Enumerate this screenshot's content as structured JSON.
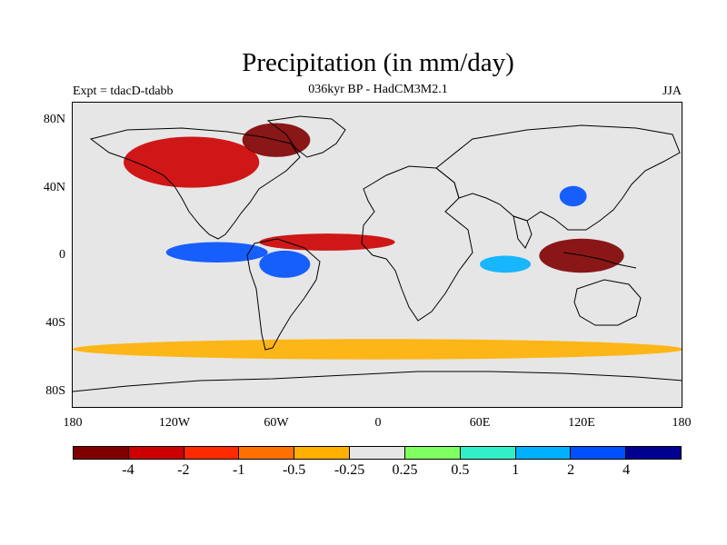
{
  "title": "Precipitation (in mm/day)",
  "subtitle": "036kyr BP - HadCM3M2.1",
  "left_label": "Expt = tdacD-tdabb",
  "right_label": "JJA",
  "chart_data": {
    "type": "heatmap",
    "title": "Precipitation (in mm/day)",
    "xlabel": "",
    "ylabel": "",
    "x_ticks": [
      "180",
      "120W",
      "60W",
      "0",
      "60E",
      "120E",
      "180"
    ],
    "y_ticks": [
      "80N",
      "40N",
      "0",
      "40S",
      "80S"
    ],
    "lon_range": [
      -180,
      180
    ],
    "lat_range": [
      -90,
      90
    ],
    "colorbar": {
      "labels": [
        "-4",
        "-2",
        "-1",
        "-0.5",
        "-0.25",
        "0.25",
        "0.5",
        "1",
        "2",
        "4"
      ],
      "colors": [
        "#7f0000",
        "#cc0000",
        "#ff2a00",
        "#ff7000",
        "#ffb000",
        "#e6e6e6",
        "#80ff60",
        "#30f0c8",
        "#00b0ff",
        "#0050ff",
        "#000090"
      ]
    },
    "features": [
      {
        "name": "north-america-drying",
        "label": "< -2",
        "lon": -110,
        "lat": 55,
        "rx": 40,
        "ry": 15,
        "color": "#cc0000"
      },
      {
        "name": "greenland-drying",
        "label": "< -4",
        "lon": -60,
        "lat": 68,
        "rx": 20,
        "ry": 10,
        "color": "#7f0000"
      },
      {
        "name": "atlantic-itcz-drying",
        "label": "< -2",
        "lon": -30,
        "lat": 8,
        "rx": 40,
        "ry": 5,
        "color": "#cc0000"
      },
      {
        "name": "eastern-pacific-wetting",
        "label": "> 2",
        "lon": -95,
        "lat": 2,
        "rx": 30,
        "ry": 6,
        "color": "#0050ff"
      },
      {
        "name": "amazon-wetting",
        "label": "> 2",
        "lon": -55,
        "lat": -5,
        "rx": 15,
        "ry": 8,
        "color": "#0050ff"
      },
      {
        "name": "southern-ocean-band",
        "label": "-0.5",
        "lon": 0,
        "lat": -55,
        "rx": 180,
        "ry": 6,
        "color": "#ffb000"
      },
      {
        "name": "maritime-continent-drying",
        "label": "< -4",
        "lon": 120,
        "lat": 0,
        "rx": 25,
        "ry": 10,
        "color": "#7f0000"
      },
      {
        "name": "east-asia-wetting",
        "label": "> 2",
        "lon": 115,
        "lat": 35,
        "rx": 8,
        "ry": 6,
        "color": "#0050ff"
      },
      {
        "name": "indian-ocean-wetting",
        "label": "1",
        "lon": 75,
        "lat": -5,
        "rx": 15,
        "ry": 5,
        "color": "#00b0ff"
      }
    ]
  }
}
